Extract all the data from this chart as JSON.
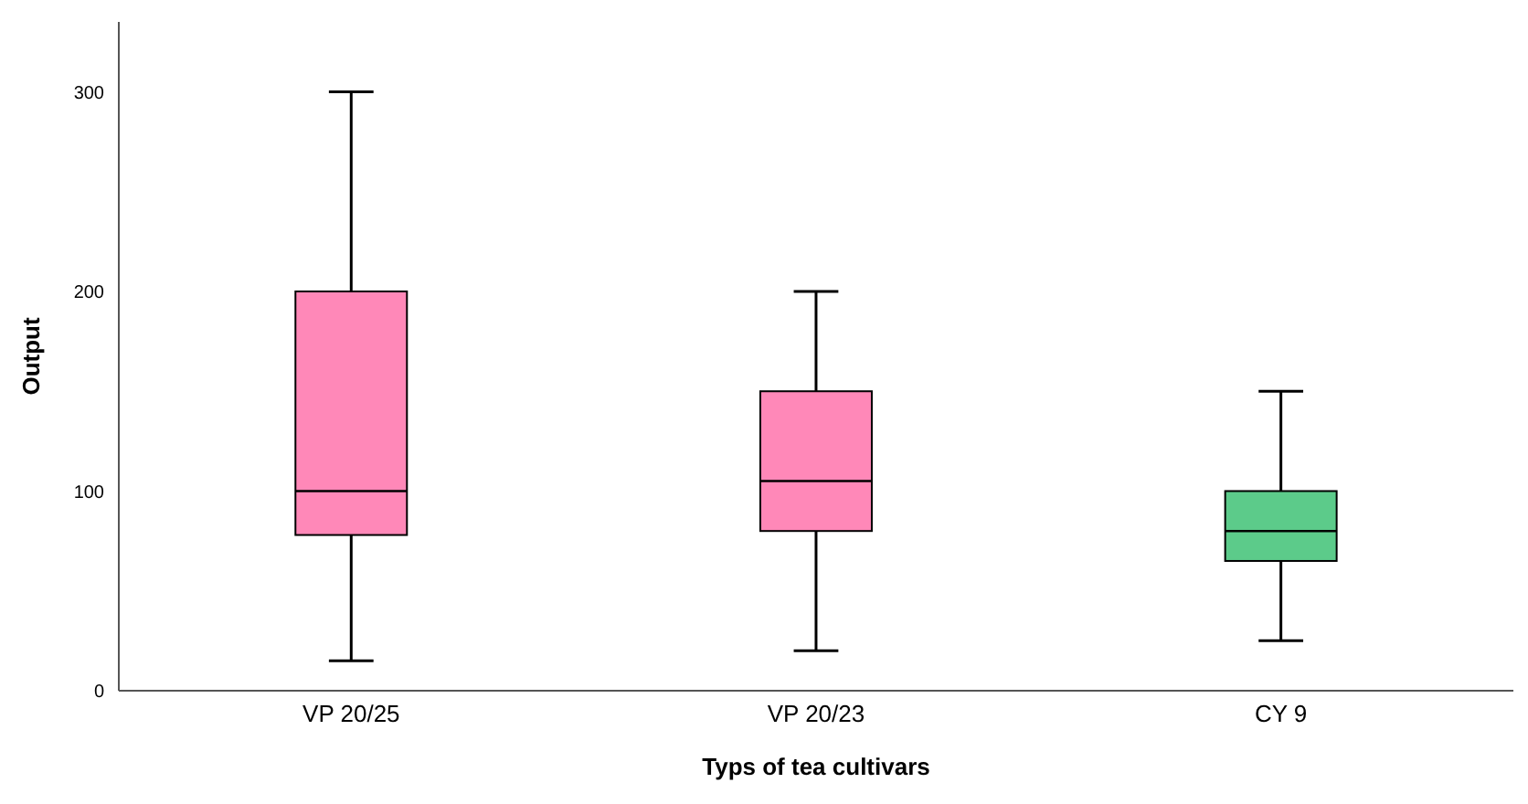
{
  "chart_data": {
    "type": "box",
    "xlabel": "Typs of tea cultivars",
    "ylabel": "Output",
    "categories": [
      "VP 20/25",
      "VP 20/23",
      "CY 9"
    ],
    "boxes": [
      {
        "low": 15,
        "q1": 78,
        "median": 100,
        "q3": 200,
        "high": 300
      },
      {
        "low": 20,
        "q1": 80,
        "median": 105,
        "q3": 150,
        "high": 200
      },
      {
        "low": 25,
        "q1": 65,
        "median": 80,
        "q3": 100,
        "high": 150
      }
    ],
    "colors": [
      "#ff88b8",
      "#ff88b8",
      "#5ccb8a"
    ],
    "ylim": [
      0,
      335
    ],
    "yticks": [
      0,
      100,
      200,
      300
    ],
    "grid": false
  }
}
